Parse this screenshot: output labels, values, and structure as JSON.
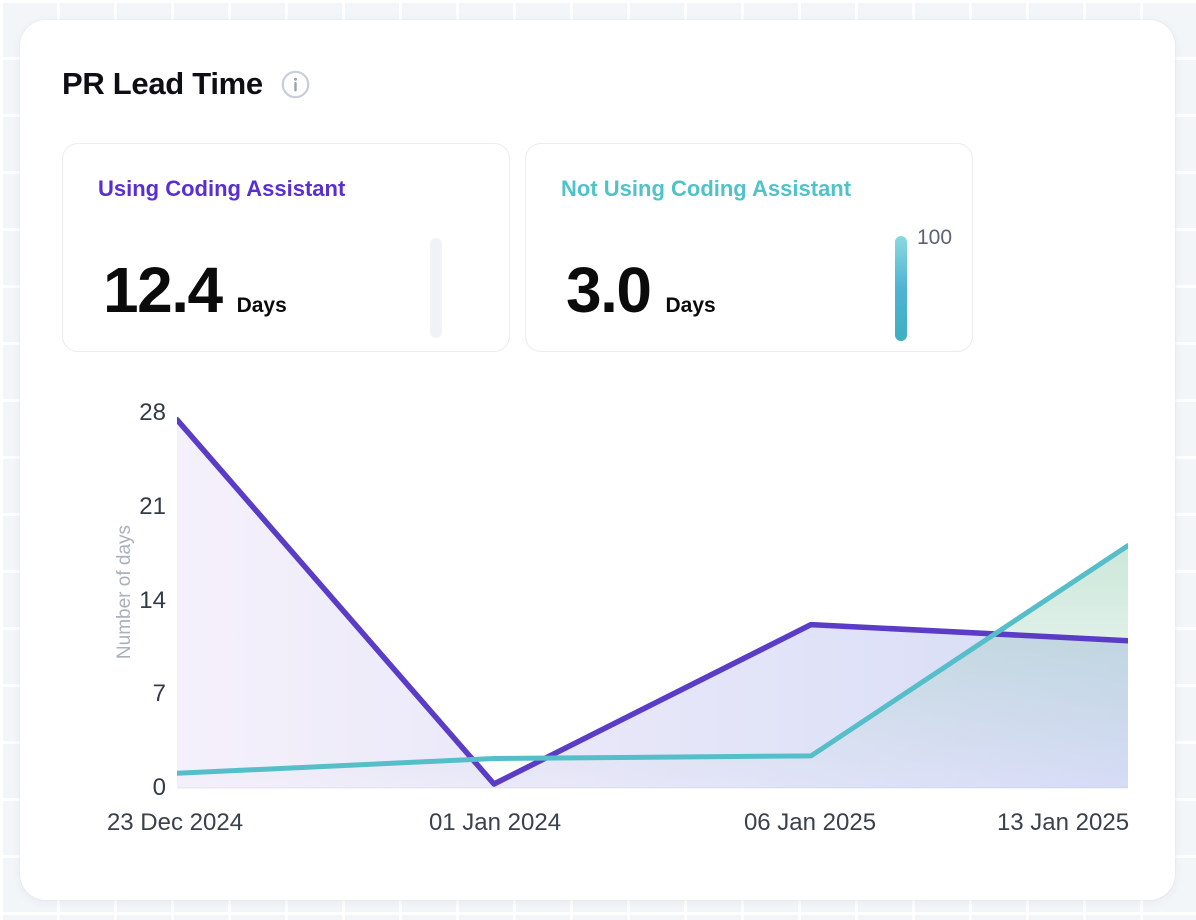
{
  "header": {
    "title": "PR Lead Time"
  },
  "stats": [
    {
      "label": "Using Coding Assistant",
      "value": "12.4",
      "unit": "Days",
      "accent_color": "#5a2fd2",
      "bar_color": "#f1f2f8",
      "bar_label": ""
    },
    {
      "label": "Not Using Coding Assistant",
      "value": "3.0",
      "unit": "Days",
      "accent_color": "#4fc2ca",
      "bar_gradient": [
        "#8ad9e0",
        "#4fb3d2",
        "#3eb0bf"
      ],
      "bar_label": "100"
    }
  ],
  "chart_data": {
    "type": "area",
    "title": "PR Lead Time",
    "x": [
      "23 Dec 2024",
      "01 Jan 2024",
      "06 Jan 2025",
      "13 Jan 2025"
    ],
    "series": [
      {
        "name": "Using Coding Assistant",
        "color": "#5b3cc6",
        "fill_gradient": [
          "#f5f0fb",
          "#d6dcf6"
        ],
        "values": [
          27.5,
          0.3,
          12.2,
          11.0
        ]
      },
      {
        "name": "Not Using Coding Assistant",
        "color": "#55bec9",
        "fill_gradient": [
          "rgba(125,195,160,0.40)",
          "rgba(125,195,160,0)"
        ],
        "values": [
          1.1,
          2.2,
          2.4,
          18.1
        ]
      }
    ],
    "ylabel": "Number of days",
    "xlabel": "",
    "y_ticks": [
      28,
      21,
      14,
      7,
      0
    ],
    "ylim": [
      0,
      28
    ],
    "grid": false,
    "legend": "none"
  }
}
